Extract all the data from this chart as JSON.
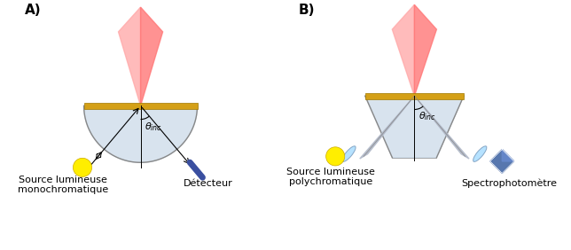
{
  "title_A": "A)",
  "title_B": "B)",
  "label_source_mono_line1": "Source lumineuse",
  "label_source_mono_line2": "monochromatique",
  "label_detector": "Détecteur",
  "label_source_poly_line1": "Source lumineuse",
  "label_source_poly_line2": "polychromatique",
  "label_spectro": "Spectrophotomètre",
  "theta_label": "θ",
  "inc_label": "inc",
  "bg_color": "#ffffff",
  "gold_color": "#D4A017",
  "prism_fill": "#c8d8e8",
  "prism_edge": "#888888",
  "beam_color": "#ff6666",
  "beam_fill": "#ff9999",
  "detector_color": "#3a4fa0",
  "source_color": "#ffee00",
  "lens_color": "#aaddff",
  "arm_color": "#b0b8c8",
  "arm_edge": "#888888",
  "text_color": "#000000",
  "font_size": 9
}
